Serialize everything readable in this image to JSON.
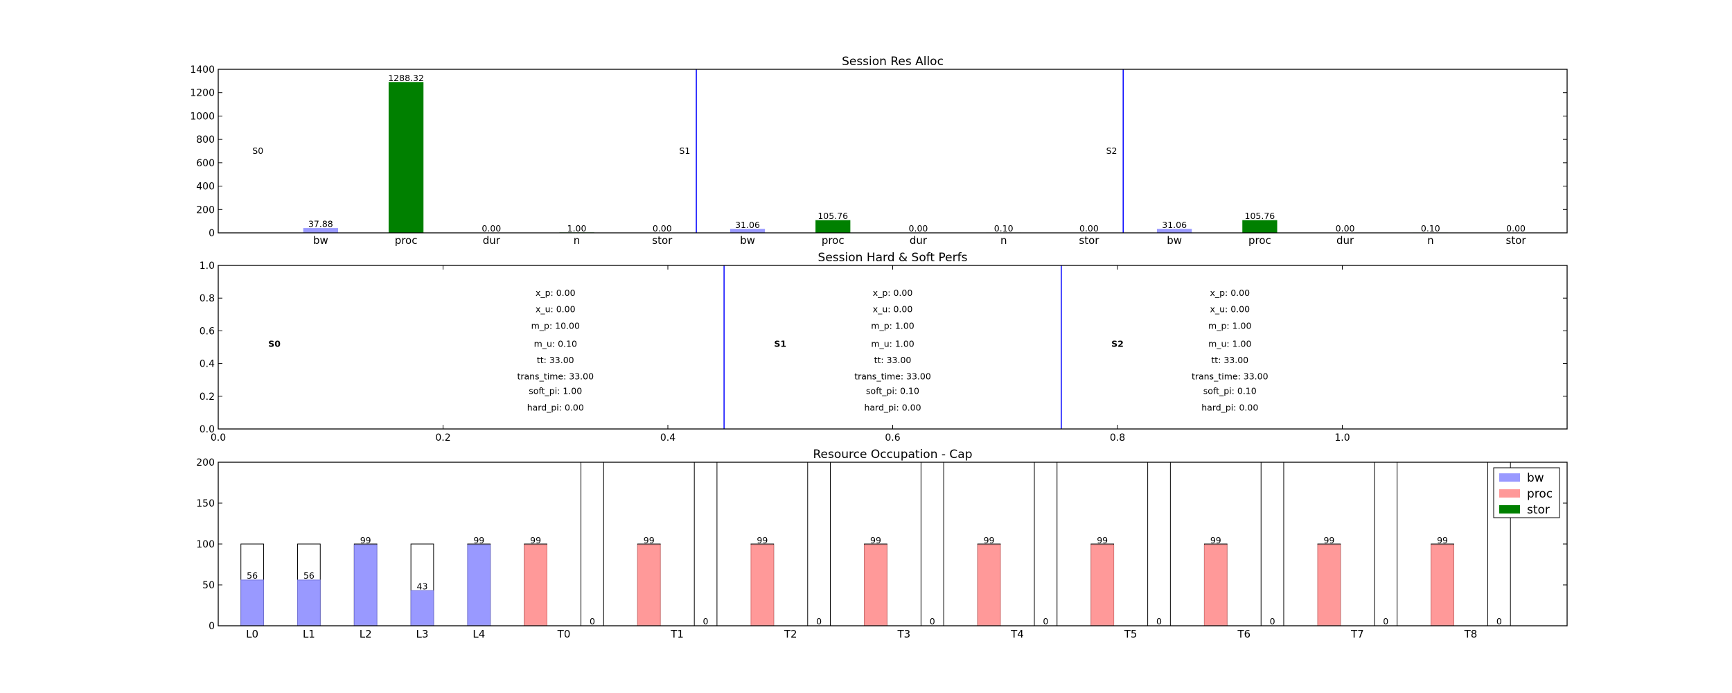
{
  "colors": {
    "bw": "#9999ff",
    "proc": "#ff9999",
    "stor": "#008000",
    "divider": "#0000ff",
    "frame": "#000000"
  },
  "chart_data": [
    {
      "type": "bar",
      "title": "Session Res Alloc",
      "ylim": [
        0,
        1400
      ],
      "yticks": [
        0,
        200,
        400,
        600,
        800,
        1000,
        1200,
        1400
      ],
      "grid": false,
      "x_range": [
        -0.3,
        3.65
      ],
      "bar_width": 0.1,
      "groups": [
        {
          "name": "S0",
          "dividers_after": 1.25,
          "bars": [
            {
              "label": "bw",
              "x": 0.0,
              "value": 37.88,
              "value_label": "37.88",
              "color_key": "bw"
            },
            {
              "label": "proc",
              "x": 0.25,
              "value": 1288.32,
              "value_label": "1288.32",
              "color_key": "stor"
            },
            {
              "label": "dur",
              "x": 0.5,
              "value": 0.0,
              "value_label": "0.00",
              "color_key": "stor"
            },
            {
              "label": "n",
              "x": 0.75,
              "value": 1.0,
              "value_label": "1.00",
              "color_key": "stor"
            },
            {
              "label": "stor",
              "x": 1.0,
              "value": 0.0,
              "value_label": "0.00",
              "color_key": "stor"
            }
          ]
        },
        {
          "name": "S1",
          "bars": [
            {
              "label": "bw",
              "x": 1.25,
              "value": 31.06,
              "value_label": "31.06",
              "color_key": "bw"
            },
            {
              "label": "proc",
              "x": 1.5,
              "value": 105.76,
              "value_label": "105.76",
              "color_key": "stor"
            },
            {
              "label": "dur",
              "x": 1.75,
              "value": 0.0,
              "value_label": "0.00",
              "color_key": "stor"
            },
            {
              "label": "n",
              "x": 2.0,
              "value": 0.1,
              "value_label": "0.10",
              "color_key": "stor"
            },
            {
              "label": "stor",
              "x": 2.25,
              "value": 0.0,
              "value_label": "0.00",
              "color_key": "stor"
            }
          ]
        },
        {
          "name": "S2",
          "bars": [
            {
              "label": "bw",
              "x": 2.5,
              "value": 31.06,
              "value_label": "31.06",
              "color_key": "bw"
            },
            {
              "label": "proc",
              "x": 2.75,
              "value": 105.76,
              "value_label": "105.76",
              "color_key": "stor"
            },
            {
              "label": "dur",
              "x": 3.0,
              "value": 0.0,
              "value_label": "0.00",
              "color_key": "stor"
            },
            {
              "label": "n",
              "x": 3.25,
              "value": 0.1,
              "value_label": "0.10",
              "color_key": "stor"
            },
            {
              "label": "stor",
              "x": 3.5,
              "value": 0.0,
              "value_label": "0.00",
              "color_key": "stor"
            }
          ]
        }
      ],
      "dividers": [
        1.1,
        2.35
      ],
      "session_label_y": 700
    },
    {
      "type": "table",
      "title": "Session Hard & Soft Perfs",
      "xlim": [
        0.0,
        1.2
      ],
      "ylim": [
        0.0,
        1.0
      ],
      "xticks": [
        0.0,
        0.2,
        0.4,
        0.6,
        0.8,
        1.0
      ],
      "xtick_labels": [
        "0.0",
        "0.2",
        "0.4",
        "0.6",
        "0.8",
        "1.0"
      ],
      "yticks": [
        0.0,
        0.2,
        0.4,
        0.6,
        0.8,
        1.0
      ],
      "ytick_labels": [
        "0.0",
        "0.2",
        "0.4",
        "0.6",
        "0.8",
        "1.0"
      ],
      "dividers": [
        0.45,
        0.75
      ],
      "sessions": [
        {
          "name": "S0",
          "name_x": 0.05,
          "info_x": 0.3,
          "lines": [
            "x_p: 0.00",
            "x_u: 0.00",
            "m_p: 10.00",
            "m_u: 0.10",
            "tt: 33.00",
            "trans_time: 33.00",
            "soft_pi: 1.00",
            "hard_pi: 0.00"
          ]
        },
        {
          "name": "S1",
          "name_x": 0.5,
          "info_x": 0.6,
          "lines": [
            "x_p: 0.00",
            "x_u: 0.00",
            "m_p: 1.00",
            "m_u: 1.00",
            "tt: 33.00",
            "trans_time: 33.00",
            "soft_pi: 0.10",
            "hard_pi: 0.00"
          ]
        },
        {
          "name": "S2",
          "name_x": 0.8,
          "info_x": 0.9,
          "lines": [
            "x_p: 0.00",
            "x_u: 0.00",
            "m_p: 1.00",
            "m_u: 1.00",
            "tt: 33.00",
            "trans_time: 33.00",
            "soft_pi: 0.10",
            "hard_pi: 0.00"
          ]
        }
      ],
      "line_y": [
        0.83,
        0.73,
        0.63,
        0.52,
        0.42,
        0.32,
        0.23,
        0.13
      ],
      "name_y": 0.52
    },
    {
      "type": "bar",
      "title": "Resource Occupation - Cap",
      "ylim": [
        0,
        200
      ],
      "yticks": [
        0,
        50,
        100,
        150,
        200
      ],
      "xlim": [
        -0.3,
        11.6
      ],
      "bar_width": 0.2,
      "categories": [
        {
          "label": "L0",
          "x": 0.0,
          "cap": 100,
          "used": 56,
          "value_label": "56",
          "color_key": "bw"
        },
        {
          "label": "L1",
          "x": 0.5,
          "cap": 100,
          "used": 56,
          "value_label": "56",
          "color_key": "bw"
        },
        {
          "label": "L2",
          "x": 1.0,
          "cap": 100,
          "used": 99,
          "value_label": "99",
          "color_key": "bw"
        },
        {
          "label": "L3",
          "x": 1.5,
          "cap": 100,
          "used": 43,
          "value_label": "43",
          "color_key": "bw"
        },
        {
          "label": "L4",
          "x": 2.0,
          "cap": 100,
          "used": 99,
          "value_label": "99",
          "color_key": "bw"
        },
        {
          "label": "T0",
          "proc_x": 2.5,
          "stor_x": 3.0,
          "label_x": 2.75,
          "proc_cap": 100,
          "proc_used": 99,
          "proc_label": "99",
          "stor_cap": 200,
          "stor_used": 0,
          "stor_label": "0"
        },
        {
          "label": "T1",
          "proc_x": 3.5,
          "stor_x": 4.0,
          "label_x": 3.75,
          "proc_cap": 100,
          "proc_used": 99,
          "proc_label": "99",
          "stor_cap": 200,
          "stor_used": 0,
          "stor_label": "0"
        },
        {
          "label": "T2",
          "proc_x": 4.5,
          "stor_x": 5.0,
          "label_x": 4.75,
          "proc_cap": 100,
          "proc_used": 99,
          "proc_label": "99",
          "stor_cap": 200,
          "stor_used": 0,
          "stor_label": "0"
        },
        {
          "label": "T3",
          "proc_x": 5.5,
          "stor_x": 6.0,
          "label_x": 5.75,
          "proc_cap": 100,
          "proc_used": 99,
          "proc_label": "99",
          "stor_cap": 200,
          "stor_used": 0,
          "stor_label": "0"
        },
        {
          "label": "T4",
          "proc_x": 6.5,
          "stor_x": 7.0,
          "label_x": 6.75,
          "proc_cap": 100,
          "proc_used": 99,
          "proc_label": "99",
          "stor_cap": 200,
          "stor_used": 0,
          "stor_label": "0"
        },
        {
          "label": "T5",
          "proc_x": 7.5,
          "stor_x": 8.0,
          "label_x": 7.75,
          "proc_cap": 100,
          "proc_used": 99,
          "proc_label": "99",
          "stor_cap": 200,
          "stor_used": 0,
          "stor_label": "0"
        },
        {
          "label": "T6",
          "proc_x": 8.5,
          "stor_x": 9.0,
          "label_x": 8.75,
          "proc_cap": 100,
          "proc_used": 99,
          "proc_label": "99",
          "stor_cap": 200,
          "stor_used": 0,
          "stor_label": "0"
        },
        {
          "label": "T7",
          "proc_x": 9.5,
          "stor_x": 10.0,
          "label_x": 9.75,
          "proc_cap": 100,
          "proc_used": 99,
          "proc_label": "99",
          "stor_cap": 200,
          "stor_used": 0,
          "stor_label": "0"
        },
        {
          "label": "T8",
          "proc_x": 10.5,
          "stor_x": 11.0,
          "label_x": 10.75,
          "proc_cap": 100,
          "proc_used": 99,
          "proc_label": "99",
          "stor_cap": 200,
          "stor_used": 0,
          "stor_label": "0"
        }
      ],
      "legend": {
        "placement": "top-right",
        "entries": [
          {
            "label": "bw",
            "color_key": "bw"
          },
          {
            "label": "proc",
            "color_key": "proc"
          },
          {
            "label": "stor",
            "color_key": "stor"
          }
        ]
      }
    }
  ]
}
